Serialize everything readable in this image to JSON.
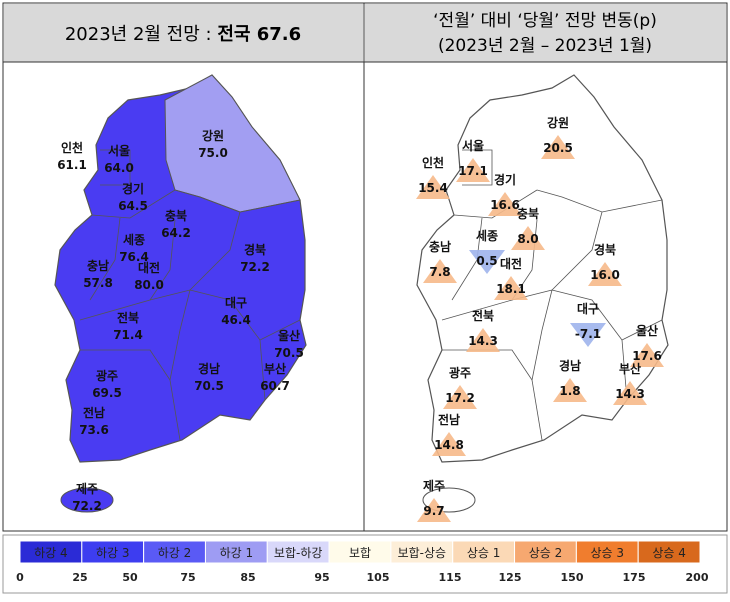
{
  "header": {
    "left": {
      "prefix": "2023년 2월 전망 : ",
      "emphasis": "전국 67.6"
    },
    "right": {
      "line1": "‘전월’ 대비 ‘당월’ 전망 변동(p)",
      "line2": "(2023년 2월 – 2023년 1월)"
    }
  },
  "left_map": {
    "regions": [
      {
        "name": "인천",
        "value": "61.1"
      },
      {
        "name": "서울",
        "value": "64.0"
      },
      {
        "name": "강원",
        "value": "75.0"
      },
      {
        "name": "경기",
        "value": "64.5"
      },
      {
        "name": "충북",
        "value": "64.2"
      },
      {
        "name": "세종",
        "value": "76.4"
      },
      {
        "name": "대전",
        "value": "80.0"
      },
      {
        "name": "충남",
        "value": "57.8"
      },
      {
        "name": "경북",
        "value": "72.2"
      },
      {
        "name": "대구",
        "value": "46.4"
      },
      {
        "name": "전북",
        "value": "71.4"
      },
      {
        "name": "울산",
        "value": "70.5"
      },
      {
        "name": "경남",
        "value": "70.5"
      },
      {
        "name": "부산",
        "value": "60.7"
      },
      {
        "name": "광주",
        "value": "69.5"
      },
      {
        "name": "전남",
        "value": "73.6"
      },
      {
        "name": "제주",
        "value": "72.2"
      }
    ]
  },
  "right_map": {
    "regions": [
      {
        "name": "강원",
        "value": "20.5",
        "direction": "up"
      },
      {
        "name": "서울",
        "value": "17.1",
        "direction": "up"
      },
      {
        "name": "인천",
        "value": "15.4",
        "direction": "up"
      },
      {
        "name": "경기",
        "value": "16.6",
        "direction": "up"
      },
      {
        "name": "충북",
        "value": "8.0",
        "direction": "up"
      },
      {
        "name": "세종",
        "value": "0.5",
        "direction": "down"
      },
      {
        "name": "충남",
        "value": "7.8",
        "direction": "up"
      },
      {
        "name": "경북",
        "value": "16.0",
        "direction": "up"
      },
      {
        "name": "대전",
        "value": "18.1",
        "direction": "up"
      },
      {
        "name": "대구",
        "value": "-7.1",
        "direction": "down"
      },
      {
        "name": "전북",
        "value": "14.3",
        "direction": "up"
      },
      {
        "name": "울산",
        "value": "17.6",
        "direction": "up"
      },
      {
        "name": "경남",
        "value": "1.8",
        "direction": "up"
      },
      {
        "name": "부산",
        "value": "14.3",
        "direction": "up"
      },
      {
        "name": "광주",
        "value": "17.2",
        "direction": "up"
      },
      {
        "name": "전남",
        "value": "14.8",
        "direction": "up"
      },
      {
        "name": "제주",
        "value": "9.7",
        "direction": "up"
      }
    ]
  },
  "legend": {
    "items": [
      {
        "label": "하강 4",
        "color": "#2b2bd6"
      },
      {
        "label": "하강 3",
        "color": "#3d3df0"
      },
      {
        "label": "하강 2",
        "color": "#5a5af5"
      },
      {
        "label": "하강 1",
        "color": "#9e9cf3"
      },
      {
        "label": "보합-하강",
        "color": "#d9d8fa"
      },
      {
        "label": "보합",
        "color": "#fffbea"
      },
      {
        "label": "보합-상승",
        "color": "#fdeed8"
      },
      {
        "label": "상승 1",
        "color": "#fbd9b6"
      },
      {
        "label": "상승 2",
        "color": "#f6a870"
      },
      {
        "label": "상승 3",
        "color": "#f07d2e"
      },
      {
        "label": "상승 4",
        "color": "#d8691d"
      }
    ],
    "scale": [
      "0",
      "25",
      "50",
      "75",
      "85",
      "95",
      "105",
      "115",
      "125",
      "150",
      "175",
      "200"
    ]
  }
}
